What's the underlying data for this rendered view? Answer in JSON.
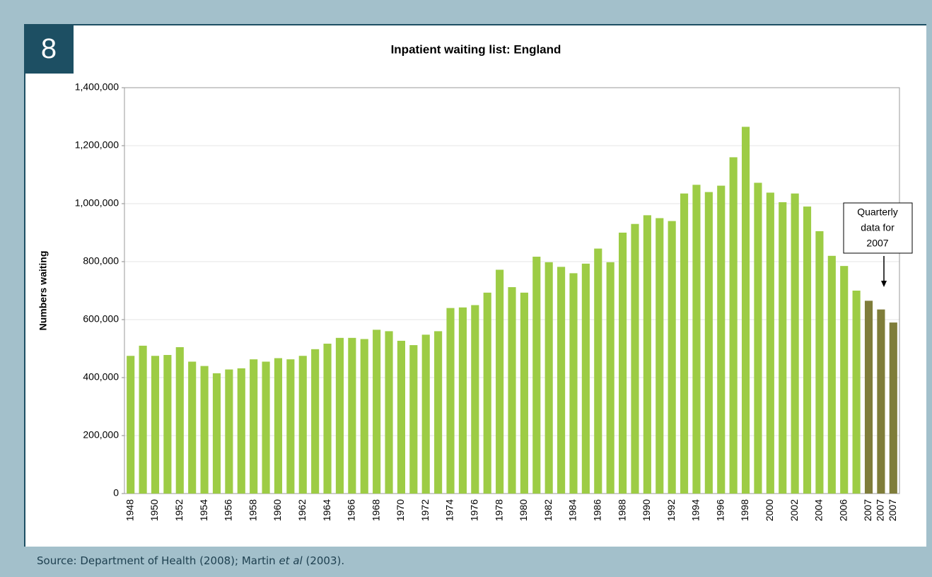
{
  "panel_number": "8",
  "source": {
    "before": "Source: Department of Health (2008); Martin ",
    "italic": "et al",
    "after": " (2003)."
  },
  "chart_data": {
    "type": "bar",
    "title": "Inpatient waiting list: England",
    "y_label": "Numbers waiting",
    "categories": [
      "1948",
      null,
      "1950",
      null,
      "1952",
      null,
      "1954",
      null,
      "1956",
      null,
      "1958",
      null,
      "1960",
      null,
      "1962",
      null,
      "1964",
      null,
      "1966",
      null,
      "1968",
      null,
      "1970",
      null,
      "1972",
      null,
      "1974",
      null,
      "1976",
      null,
      "1978",
      null,
      "1980",
      null,
      "1982",
      null,
      "1984",
      null,
      "1986",
      null,
      "1988",
      null,
      "1990",
      null,
      "1992",
      null,
      "1994",
      null,
      "1996",
      null,
      "1998",
      null,
      "2000",
      null,
      "2002",
      null,
      "2004",
      null,
      "2006",
      null,
      "2007",
      "2007",
      "2007"
    ],
    "values": [
      475000,
      510000,
      475000,
      478000,
      505000,
      455000,
      440000,
      415000,
      428000,
      432000,
      463000,
      455000,
      467000,
      463000,
      475000,
      498000,
      517000,
      537000,
      537000,
      533000,
      565000,
      560000,
      527000,
      512000,
      548000,
      560000,
      640000,
      642000,
      650000,
      693000,
      772000,
      712000,
      693000,
      817000,
      798000,
      782000,
      760000,
      793000,
      845000,
      798000,
      900000,
      930000,
      960000,
      950000,
      940000,
      1035000,
      1065000,
      1040000,
      1062000,
      1160000,
      1265000,
      1072000,
      1038000,
      1005000,
      1035000,
      990000,
      905000,
      820000,
      785000,
      700000,
      665000,
      635000,
      590000
    ],
    "colors": [
      "#9dcc45",
      "#9dcc45",
      "#9dcc45",
      "#9dcc45",
      "#9dcc45",
      "#9dcc45",
      "#9dcc45",
      "#9dcc45",
      "#9dcc45",
      "#9dcc45",
      "#9dcc45",
      "#9dcc45",
      "#9dcc45",
      "#9dcc45",
      "#9dcc45",
      "#9dcc45",
      "#9dcc45",
      "#9dcc45",
      "#9dcc45",
      "#9dcc45",
      "#9dcc45",
      "#9dcc45",
      "#9dcc45",
      "#9dcc45",
      "#9dcc45",
      "#9dcc45",
      "#9dcc45",
      "#9dcc45",
      "#9dcc45",
      "#9dcc45",
      "#9dcc45",
      "#9dcc45",
      "#9dcc45",
      "#9dcc45",
      "#9dcc45",
      "#9dcc45",
      "#9dcc45",
      "#9dcc45",
      "#9dcc45",
      "#9dcc45",
      "#9dcc45",
      "#9dcc45",
      "#9dcc45",
      "#9dcc45",
      "#9dcc45",
      "#9dcc45",
      "#9dcc45",
      "#9dcc45",
      "#9dcc45",
      "#9dcc45",
      "#9dcc45",
      "#9dcc45",
      "#9dcc45",
      "#9dcc45",
      "#9dcc45",
      "#9dcc45",
      "#9dcc45",
      "#9dcc45",
      "#9dcc45",
      "#9dcc45",
      "#7f7d3a",
      "#7f7d3a",
      "#7f7d3a"
    ],
    "ylim": [
      0,
      1400000
    ],
    "yticks": [
      0,
      {
        "value": 200000,
        "label": "200,000"
      },
      {
        "value": 400000,
        "label": "400,000"
      },
      {
        "value": 600000,
        "label": "600,000"
      },
      {
        "value": 800000,
        "label": "800,000"
      },
      {
        "value": 1000000,
        "label": "1,000,000"
      },
      {
        "value": 1200000,
        "label": "1,200,000"
      },
      {
        "value": 1400000,
        "label": "1,400,000"
      }
    ],
    "grid": true,
    "annotation": {
      "lines": [
        "Quarterly",
        "data for",
        "2007"
      ]
    }
  }
}
